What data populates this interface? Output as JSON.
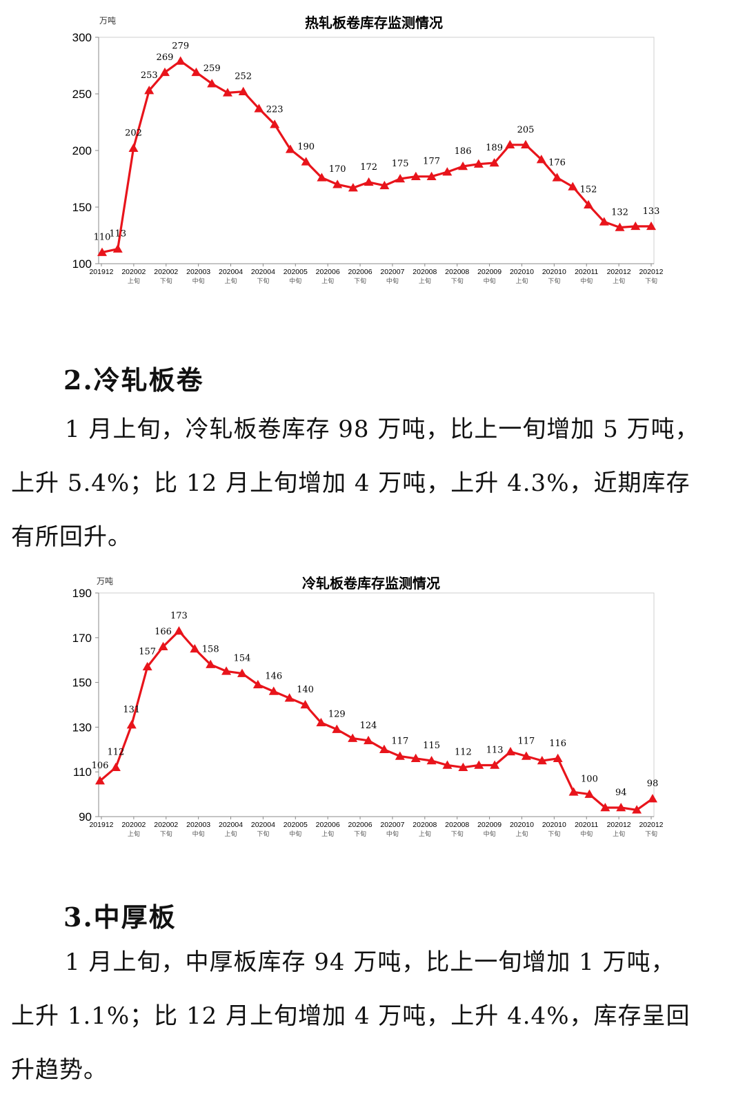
{
  "charts": [
    {
      "chart_data": {
        "type": "line",
        "title": "热轧板卷库存监测情况",
        "unit": "万吨",
        "ylim": [
          100,
          300
        ],
        "yticks": [
          100,
          150,
          200,
          250,
          300
        ],
        "x_labels": [
          {
            "label": "201912",
            "sub": ""
          },
          {
            "label": "202002",
            "sub": "上旬"
          },
          {
            "label": "202002",
            "sub": "下旬"
          },
          {
            "label": "202003",
            "sub": "中旬"
          },
          {
            "label": "202004",
            "sub": "上旬"
          },
          {
            "label": "202004",
            "sub": "下旬"
          },
          {
            "label": "202005",
            "sub": "中旬"
          },
          {
            "label": "202006",
            "sub": "上旬"
          },
          {
            "label": "202006",
            "sub": "下旬"
          },
          {
            "label": "202007",
            "sub": "中旬"
          },
          {
            "label": "202008",
            "sub": "上旬"
          },
          {
            "label": "202008",
            "sub": "下旬"
          },
          {
            "label": "202009",
            "sub": "中旬"
          },
          {
            "label": "202010",
            "sub": "上旬"
          },
          {
            "label": "202010",
            "sub": "下旬"
          },
          {
            "label": "202011",
            "sub": "中旬"
          },
          {
            "label": "202012",
            "sub": "上旬"
          },
          {
            "label": "202012",
            "sub": "下旬"
          }
        ],
        "values": [
          110,
          113,
          202,
          253,
          269,
          279,
          269,
          259,
          251,
          252,
          237,
          223,
          201,
          190,
          176,
          170,
          167,
          172,
          169,
          175,
          177,
          177,
          181,
          186,
          188,
          189,
          205,
          205,
          192,
          176,
          168,
          152,
          137,
          132,
          133,
          133
        ],
        "data_labels": [
          {
            "i": 0,
            "text": "110"
          },
          {
            "i": 1,
            "text": "113"
          },
          {
            "i": 2,
            "text": "202"
          },
          {
            "i": 3,
            "text": "253"
          },
          {
            "i": 4,
            "text": "269"
          },
          {
            "i": 5,
            "text": "279"
          },
          {
            "i": 7,
            "text": "259"
          },
          {
            "i": 9,
            "text": "252"
          },
          {
            "i": 11,
            "text": "223"
          },
          {
            "i": 13,
            "text": "190"
          },
          {
            "i": 15,
            "text": "170"
          },
          {
            "i": 17,
            "text": "172"
          },
          {
            "i": 19,
            "text": "175"
          },
          {
            "i": 21,
            "text": "177"
          },
          {
            "i": 23,
            "text": "186"
          },
          {
            "i": 25,
            "text": "189"
          },
          {
            "i": 27,
            "text": "205"
          },
          {
            "i": 29,
            "text": "176"
          },
          {
            "i": 31,
            "text": "152"
          },
          {
            "i": 33,
            "text": "132"
          },
          {
            "i": 35,
            "text": "133"
          }
        ],
        "color": "#e8141b",
        "grid": false,
        "marker": "triangle"
      }
    },
    {
      "chart_data": {
        "type": "line",
        "title": "冷轧板卷库存监测情况",
        "unit": "万吨",
        "ylim": [
          90,
          190
        ],
        "yticks": [
          90,
          110,
          130,
          150,
          170,
          190
        ],
        "x_labels": [
          {
            "label": "201912",
            "sub": ""
          },
          {
            "label": "202002",
            "sub": "上旬"
          },
          {
            "label": "202002",
            "sub": "下旬"
          },
          {
            "label": "202003",
            "sub": "中旬"
          },
          {
            "label": "202004",
            "sub": "上旬"
          },
          {
            "label": "202004",
            "sub": "下旬"
          },
          {
            "label": "202005",
            "sub": "中旬"
          },
          {
            "label": "202006",
            "sub": "上旬"
          },
          {
            "label": "202006",
            "sub": "下旬"
          },
          {
            "label": "202007",
            "sub": "中旬"
          },
          {
            "label": "202008",
            "sub": "上旬"
          },
          {
            "label": "202008",
            "sub": "下旬"
          },
          {
            "label": "202009",
            "sub": "中旬"
          },
          {
            "label": "202010",
            "sub": "上旬"
          },
          {
            "label": "202010",
            "sub": "下旬"
          },
          {
            "label": "202011",
            "sub": "中旬"
          },
          {
            "label": "202012",
            "sub": "上旬"
          },
          {
            "label": "202012",
            "sub": "下旬"
          }
        ],
        "values": [
          106,
          112,
          131,
          157,
          166,
          173,
          165,
          158,
          155,
          154,
          149,
          146,
          143,
          140,
          132,
          129,
          125,
          124,
          120,
          117,
          116,
          115,
          113,
          112,
          113,
          113,
          119,
          117,
          115,
          116,
          101,
          100,
          94,
          94,
          93,
          98
        ],
        "data_labels": [
          {
            "i": 0,
            "text": "106"
          },
          {
            "i": 1,
            "text": "112"
          },
          {
            "i": 2,
            "text": "131"
          },
          {
            "i": 3,
            "text": "157"
          },
          {
            "i": 4,
            "text": "166"
          },
          {
            "i": 5,
            "text": "173"
          },
          {
            "i": 7,
            "text": "158"
          },
          {
            "i": 9,
            "text": "154"
          },
          {
            "i": 11,
            "text": "146"
          },
          {
            "i": 13,
            "text": "140"
          },
          {
            "i": 15,
            "text": "129"
          },
          {
            "i": 17,
            "text": "124"
          },
          {
            "i": 19,
            "text": "117"
          },
          {
            "i": 21,
            "text": "115"
          },
          {
            "i": 23,
            "text": "112"
          },
          {
            "i": 25,
            "text": "113"
          },
          {
            "i": 27,
            "text": "117"
          },
          {
            "i": 29,
            "text": "116"
          },
          {
            "i": 31,
            "text": "100"
          },
          {
            "i": 33,
            "text": "94"
          },
          {
            "i": 35,
            "text": "98"
          }
        ],
        "color": "#e8141b",
        "grid": false,
        "marker": "triangle"
      }
    }
  ],
  "section2": {
    "heading": "2.冷轧板卷",
    "lines": [
      "1 月上旬，冷轧板卷库存 98 万吨，比上一旬增加 5 万吨，",
      "上升 5.4%；比 12 月上旬增加 4 万吨，上升 4.3%，近期库存",
      "有所回升。"
    ]
  },
  "section3": {
    "heading": "3.中厚板",
    "lines": [
      "1 月上旬，中厚板库存 94 万吨，比上一旬增加 1 万吨，",
      "上升 1.1%；比 12 月上旬增加 4 万吨，上升 4.4%，库存呈回",
      "升趋势。"
    ]
  }
}
